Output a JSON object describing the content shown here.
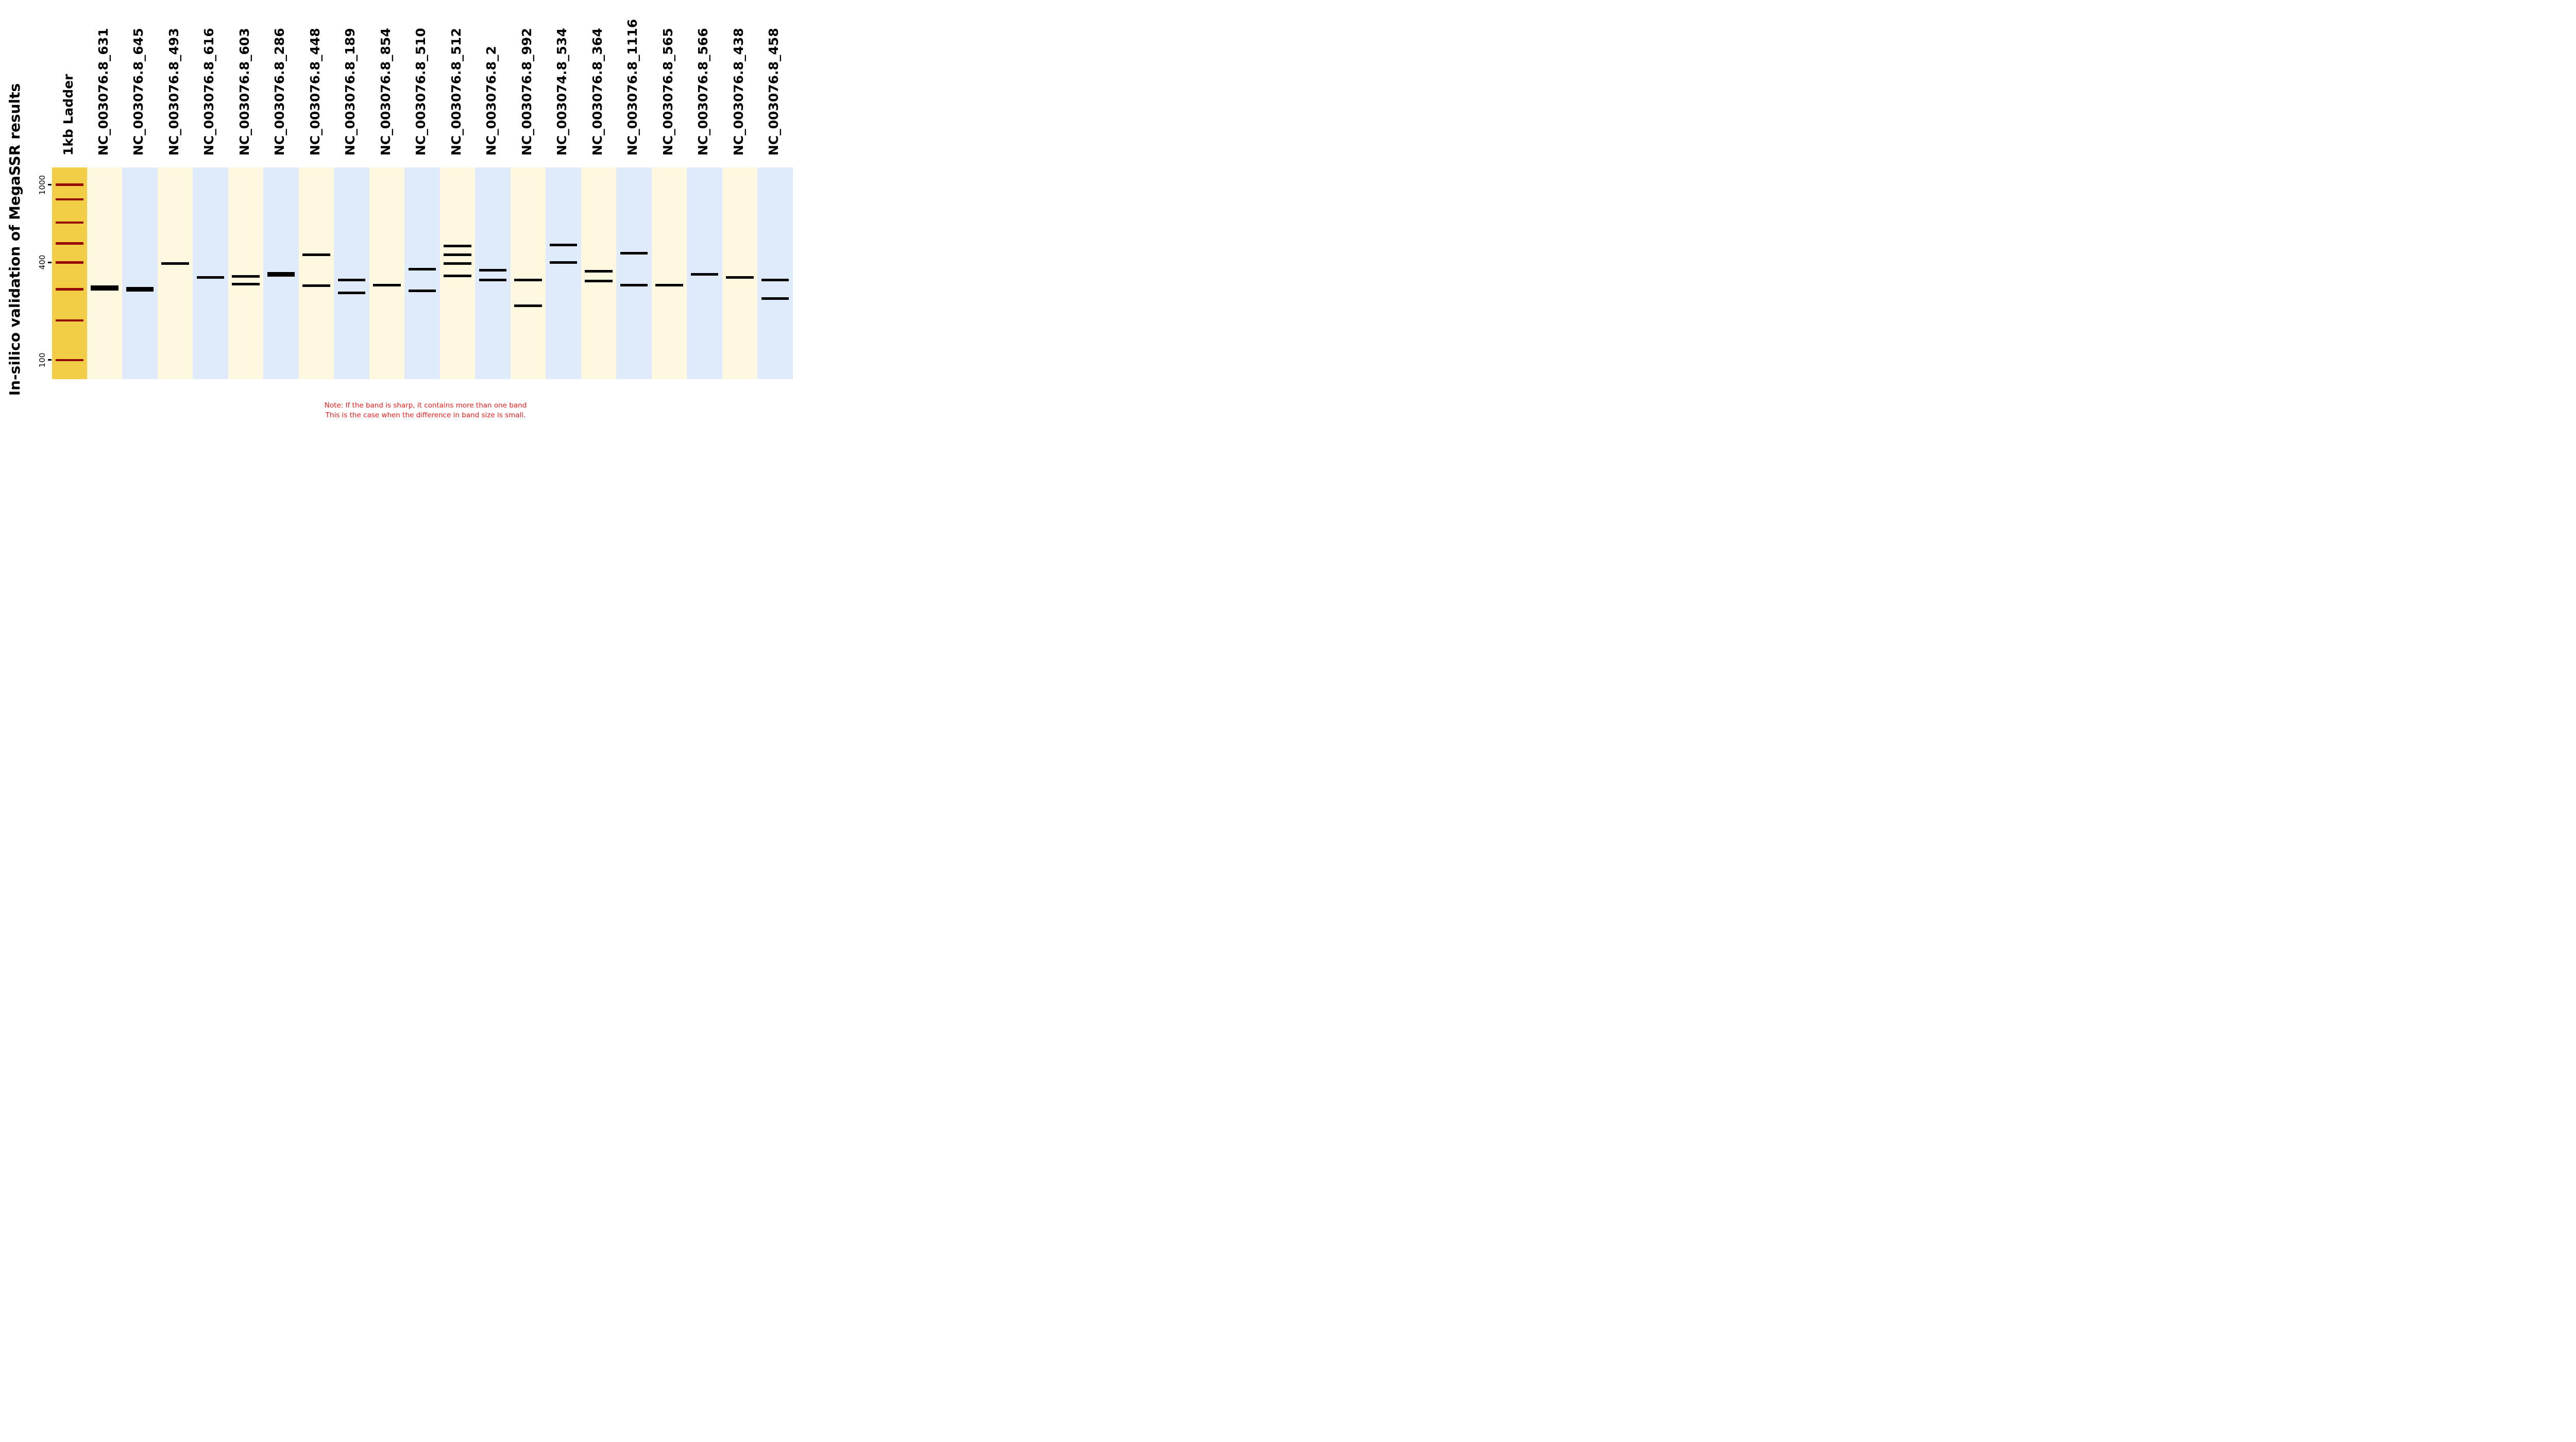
{
  "figure": {
    "title": "In-silico validation of MegaSSR results",
    "note": {
      "lines": [
        "Note: If the band is sharp, it contains more than one band",
        "This is the case when the difference in band size is small."
      ],
      "color": "#ED1C1C"
    },
    "background_color": "#FFFFFF"
  },
  "chart_data": {
    "type": "gel",
    "title": "In-silico validation of MegaSSR results",
    "y_axis": {
      "tick_labels_bp": [
        1000,
        400,
        100
      ]
    },
    "ladder_lane": {
      "label": "1kb Ladder",
      "band_sizes_bp": [
        1000,
        850,
        650,
        500,
        400,
        300,
        200,
        100
      ],
      "lane_color": "#F2CE46",
      "band_color": "#940808"
    },
    "sample_lanes": [
      {
        "label": "NC_003076.8_631",
        "bands": [
          {
            "bp": 305,
            "thick": true
          }
        ]
      },
      {
        "label": "NC_003076.8_645",
        "bands": [
          {
            "bp": 300,
            "thick": true
          }
        ]
      },
      {
        "label": "NC_003076.8_493",
        "bands": [
          {
            "bp": 395,
            "thick": false
          }
        ]
      },
      {
        "label": "NC_003076.8_616",
        "bands": [
          {
            "bp": 345,
            "thick": false
          }
        ]
      },
      {
        "label": "NC_003076.8_603",
        "bands": [
          {
            "bp": 348,
            "thick": false
          },
          {
            "bp": 320,
            "thick": false
          }
        ]
      },
      {
        "label": "NC_003076.8_286",
        "bands": [
          {
            "bp": 355,
            "thick": true
          }
        ]
      },
      {
        "label": "NC_003076.8_448",
        "bands": [
          {
            "bp": 440,
            "thick": false
          },
          {
            "bp": 313,
            "thick": false
          }
        ]
      },
      {
        "label": "NC_003076.8_189",
        "bands": [
          {
            "bp": 335,
            "thick": false
          },
          {
            "bp": 288,
            "thick": false
          }
        ]
      },
      {
        "label": "NC_003076.8_854",
        "bands": [
          {
            "bp": 315,
            "thick": false
          }
        ]
      },
      {
        "label": "NC_003076.8_510",
        "bands": [
          {
            "bp": 375,
            "thick": false
          },
          {
            "bp": 295,
            "thick": false
          }
        ]
      },
      {
        "label": "NC_003076.8_512",
        "bands": [
          {
            "bp": 485,
            "thick": false
          },
          {
            "bp": 440,
            "thick": false
          },
          {
            "bp": 395,
            "thick": false
          },
          {
            "bp": 350,
            "thick": false
          }
        ]
      },
      {
        "label": "NC_003076.8_2",
        "bands": [
          {
            "bp": 370,
            "thick": false
          },
          {
            "bp": 335,
            "thick": false
          }
        ]
      },
      {
        "label": "NC_003076.8_992",
        "bands": [
          {
            "bp": 335,
            "thick": false
          },
          {
            "bp": 248,
            "thick": false
          }
        ]
      },
      {
        "label": "NC_003074.8_534",
        "bands": [
          {
            "bp": 490,
            "thick": false
          },
          {
            "bp": 400,
            "thick": false
          }
        ]
      },
      {
        "label": "NC_003076.8_364",
        "bands": [
          {
            "bp": 368,
            "thick": false
          },
          {
            "bp": 330,
            "thick": false
          }
        ]
      },
      {
        "label": "NC_003076.8_1116",
        "bands": [
          {
            "bp": 448,
            "thick": false
          },
          {
            "bp": 315,
            "thick": false
          }
        ]
      },
      {
        "label": "NC_003076.8_565",
        "bands": [
          {
            "bp": 315,
            "thick": false
          }
        ]
      },
      {
        "label": "NC_003076.8_566",
        "bands": [
          {
            "bp": 355,
            "thick": false
          }
        ]
      },
      {
        "label": "NC_003076.8_438",
        "bands": [
          {
            "bp": 345,
            "thick": false
          }
        ]
      },
      {
        "label": "NC_003076.8_458",
        "bands": [
          {
            "bp": 335,
            "thick": false
          },
          {
            "bp": 270,
            "thick": false
          }
        ]
      }
    ],
    "lane_stripe_colors": [
      "#FFF8E1",
      "#DFEAFB"
    ],
    "band_color": "#000000",
    "size_to_position_anchors": [
      {
        "bp": 1000,
        "frac": 0.082
      },
      {
        "bp": 850,
        "frac": 0.151
      },
      {
        "bp": 650,
        "frac": 0.26
      },
      {
        "bp": 500,
        "frac": 0.358
      },
      {
        "bp": 400,
        "frac": 0.448
      },
      {
        "bp": 300,
        "frac": 0.575
      },
      {
        "bp": 200,
        "frac": 0.722
      },
      {
        "bp": 100,
        "frac": 0.909
      }
    ]
  }
}
